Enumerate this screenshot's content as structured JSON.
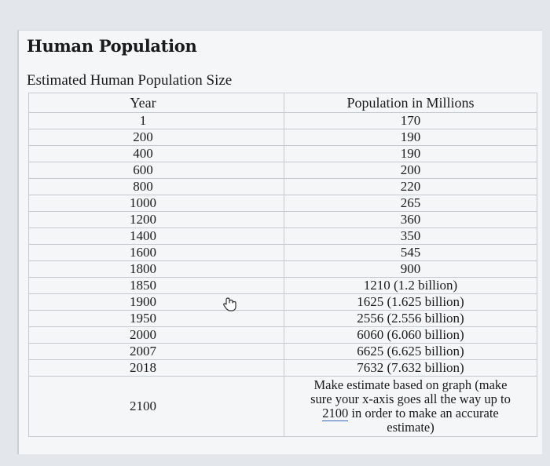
{
  "document": {
    "heading": "Human Population",
    "caption": "Estimated Human Population Size"
  },
  "table": {
    "headers": {
      "year": "Year",
      "population": "Population in Millions"
    },
    "rows": [
      {
        "year": "1",
        "population": "170"
      },
      {
        "year": "200",
        "population": "190"
      },
      {
        "year": "400",
        "population": "190"
      },
      {
        "year": "600",
        "population": "200"
      },
      {
        "year": "800",
        "population": "220"
      },
      {
        "year": "1000",
        "population": "265"
      },
      {
        "year": "1200",
        "population": "360"
      },
      {
        "year": "1400",
        "population": "350"
      },
      {
        "year": "1600",
        "population": "545"
      },
      {
        "year": "1800",
        "population": "900"
      },
      {
        "year": "1850",
        "population": "1210 (1.2 billion)"
      },
      {
        "year": "1900",
        "population": "1625 (1.625 billion)"
      },
      {
        "year": "1950",
        "population": "2556 (2.556 billion)"
      },
      {
        "year": "2000",
        "population": "6060 (6.060 billion)"
      },
      {
        "year": "2007",
        "population": "6625 (6.625 billion)"
      },
      {
        "year": "2018",
        "population": "7632 (7.632 billion)"
      }
    ],
    "final_row": {
      "year": "2100",
      "note_line1": "Make estimate based on graph (make",
      "note_line2": "sure your x-axis goes all the way up to",
      "note_num": "2100",
      "note_line3_rest": " in order to make an accurate",
      "note_line4": "estimate)"
    }
  },
  "icons": {
    "cursor": "hand-pointer-icon"
  }
}
